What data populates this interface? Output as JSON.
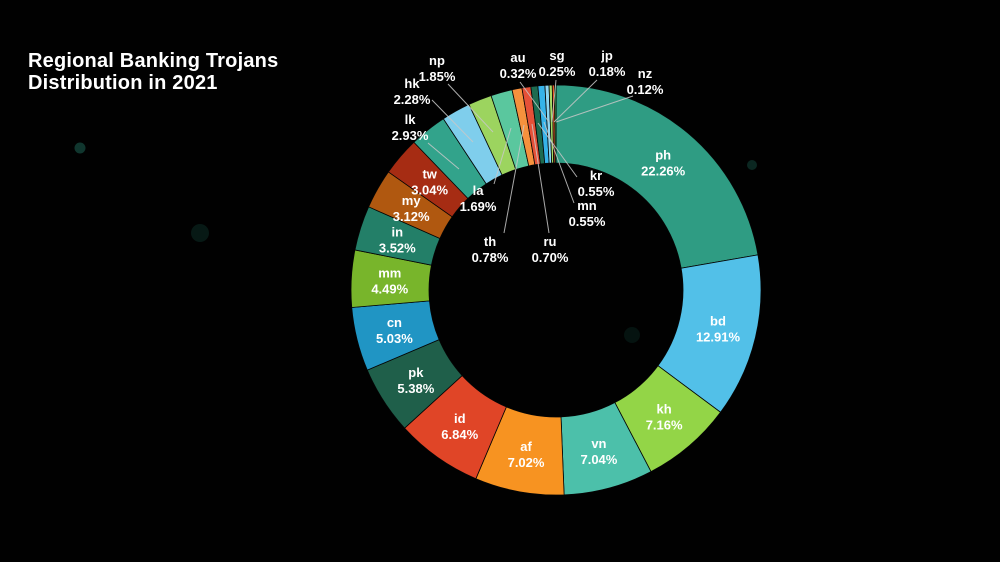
{
  "title": {
    "line1": "Regional Banking Trojans",
    "line2": "Distribution in 2021"
  },
  "chart_data": {
    "type": "pie",
    "subtype": "donut",
    "title": "Regional Banking Trojans Distribution in 2021",
    "value_unit": "percent",
    "start_angle_deg": 0,
    "direction": "clockwise",
    "inner_radius_ratio": 0.62,
    "background_color": "#010101",
    "label_color": "#ffffff",
    "leader_line_color": "#c8c8c8",
    "segments": [
      {
        "code": "ph",
        "value": 22.26,
        "pct_label": "22.26%",
        "color": "#2f9c83"
      },
      {
        "code": "bd",
        "value": 12.91,
        "pct_label": "12.91%",
        "color": "#52c0e8"
      },
      {
        "code": "kh",
        "value": 7.16,
        "pct_label": "7.16%",
        "color": "#93d547"
      },
      {
        "code": "vn",
        "value": 7.04,
        "pct_label": "7.04%",
        "color": "#4cc0aa"
      },
      {
        "code": "af",
        "value": 7.02,
        "pct_label": "7.02%",
        "color": "#f79321"
      },
      {
        "code": "id",
        "value": 6.84,
        "pct_label": "6.84%",
        "color": "#e04527"
      },
      {
        "code": "pk",
        "value": 5.38,
        "pct_label": "5.38%",
        "color": "#1f5f4a"
      },
      {
        "code": "cn",
        "value": 5.03,
        "pct_label": "5.03%",
        "color": "#2095c4"
      },
      {
        "code": "mm",
        "value": 4.49,
        "pct_label": "4.49%",
        "color": "#78b52b"
      },
      {
        "code": "in",
        "value": 3.52,
        "pct_label": "3.52%",
        "color": "#237f68"
      },
      {
        "code": "my",
        "value": 3.12,
        "pct_label": "3.12%",
        "color": "#b05810"
      },
      {
        "code": "tw",
        "value": 3.04,
        "pct_label": "3.04%",
        "color": "#a62c13"
      },
      {
        "code": "lk",
        "value": 2.93,
        "pct_label": "2.93%",
        "color": "#32a38b"
      },
      {
        "code": "hk",
        "value": 2.28,
        "pct_label": "2.28%",
        "color": "#7fceec"
      },
      {
        "code": "np",
        "value": 1.85,
        "pct_label": "1.85%",
        "color": "#9cd45f"
      },
      {
        "code": "la",
        "value": 1.69,
        "pct_label": "1.69%",
        "color": "#5ac79e"
      },
      {
        "code": "th",
        "value": 0.78,
        "pct_label": "0.78%",
        "color": "#f5913d"
      },
      {
        "code": "ru",
        "value": 0.7,
        "pct_label": "0.70%",
        "color": "#e55138"
      },
      {
        "code": "kr",
        "value": 0.55,
        "pct_label": "0.55%",
        "color": "#1d6b50"
      },
      {
        "code": "mn",
        "value": 0.55,
        "pct_label": "0.55%",
        "color": "#36b3e9"
      },
      {
        "code": "au",
        "value": 0.32,
        "pct_label": "0.32%",
        "color": "#8ed6f2"
      },
      {
        "code": "sg",
        "value": 0.25,
        "pct_label": "0.25%",
        "color": "#a5dc66"
      },
      {
        "code": "jp",
        "value": 0.18,
        "pct_label": "0.18%",
        "color": "#e6622d"
      },
      {
        "code": "nz",
        "value": 0.12,
        "pct_label": "0.12%",
        "color": "#3fae52"
      }
    ]
  }
}
